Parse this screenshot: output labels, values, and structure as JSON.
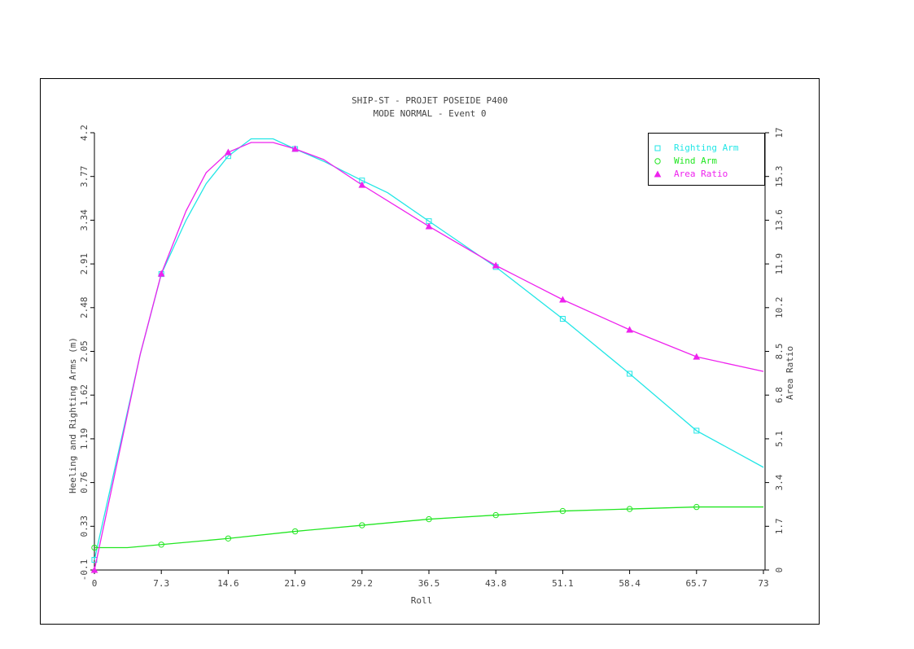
{
  "chart_data": {
    "type": "line",
    "title": "SHIP-ST - PROJET POSEIDE P400",
    "subtitle": "MODE NORMAL - Event 0",
    "x_label": "Roll",
    "y_label": "Heeling and Righting Arms (m)",
    "y2_label": "Area Ratio",
    "xlim": [
      0,
      73
    ],
    "xticks": [
      0,
      7.3,
      14.6,
      21.9,
      29.2,
      36.5,
      43.8,
      51.1,
      58.4,
      65.7,
      73
    ],
    "ylim": [
      -0.1,
      4.2
    ],
    "yticks": [
      -0.1,
      0.33,
      0.76,
      1.19,
      1.62,
      2.05,
      2.48,
      2.91,
      3.34,
      3.77,
      4.2
    ],
    "y2lim": [
      0,
      17
    ],
    "y2ticks": [
      0,
      1.7,
      3.4,
      5.1,
      6.8,
      8.5,
      10.2,
      11.9,
      13.6,
      15.3,
      17
    ],
    "legend": "upper right",
    "series": [
      {
        "name": "Righting Arm",
        "color": "#22e6e6",
        "marker": "square",
        "axis": "y",
        "x": [
          0,
          5,
          7.3,
          10,
          12.2,
          14.6,
          17.1,
          19.5,
          21.9,
          25,
          29.2,
          32,
          36.5,
          43.8,
          51.1,
          58.4,
          65.7,
          73
        ],
        "values": [
          0.0,
          2.02,
          2.81,
          3.34,
          3.7,
          3.97,
          4.14,
          4.14,
          4.04,
          3.92,
          3.73,
          3.61,
          3.33,
          2.88,
          2.37,
          1.83,
          1.27,
          0.91
        ]
      },
      {
        "name": "Wind Arm",
        "color": "#22e622",
        "marker": "circle",
        "axis": "y",
        "x": [
          0,
          3.6,
          7.3,
          14.6,
          21.9,
          29.2,
          36.5,
          43.8,
          51.1,
          58.4,
          65.7,
          73
        ],
        "values": [
          0.12,
          0.12,
          0.15,
          0.21,
          0.28,
          0.34,
          0.4,
          0.44,
          0.48,
          0.5,
          0.52,
          0.52
        ]
      },
      {
        "name": "Area Ratio",
        "color": "#ee22ee",
        "marker": "triangle",
        "axis": "y2",
        "x": [
          0,
          5,
          7.3,
          10,
          12.2,
          14.6,
          17.1,
          19.5,
          21.9,
          25,
          29.2,
          36.5,
          43.8,
          51.1,
          58.4,
          65.7,
          73
        ],
        "values": [
          0,
          8.39,
          11.52,
          13.96,
          15.45,
          16.24,
          16.62,
          16.62,
          16.37,
          15.96,
          14.97,
          13.36,
          11.84,
          10.51,
          9.34,
          8.29,
          7.72
        ]
      }
    ]
  }
}
